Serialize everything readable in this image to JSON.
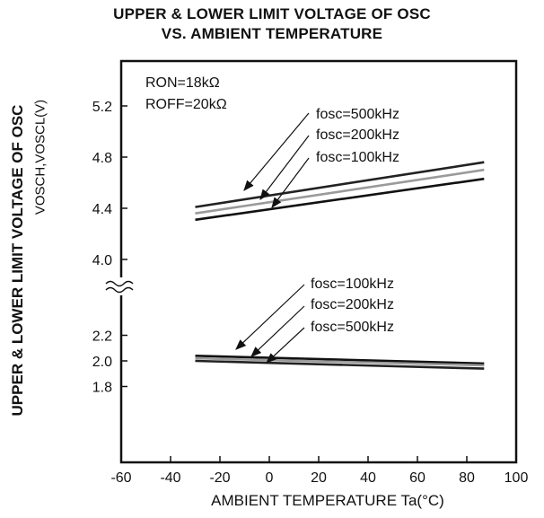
{
  "chart_data": {
    "type": "line",
    "title": "UPPER & LOWER LIMIT VOLTAGE OF OSC",
    "subtitle": "VS. AMBIENT TEMPERATURE",
    "xlabel": "AMBIENT TEMPERATURE Ta(°C)",
    "ylabel": "UPPER & LOWER LIMIT VOLTAGE OF OSC",
    "ylabel_sub": "VOSCH,VOSCL(V)",
    "xlim": [
      -60,
      100
    ],
    "x_ticks": [
      -60,
      -40,
      -20,
      0,
      20,
      40,
      60,
      80,
      100
    ],
    "y_ticks": [
      "5.2",
      "4.8",
      "4.4",
      "4.0",
      "2.2",
      "2.0",
      "1.8"
    ],
    "axis_break": "between 4.0 and 2.2",
    "conditions": [
      "RON=18kΩ",
      "ROFF=20kΩ"
    ],
    "series": [
      {
        "name": "fosc=500kHz",
        "group": "upper",
        "x": [
          -30,
          87
        ],
        "y": [
          4.41,
          4.76
        ],
        "color": "#222222"
      },
      {
        "name": "fosc=200kHz",
        "group": "upper",
        "x": [
          -30,
          87
        ],
        "y": [
          4.36,
          4.7
        ],
        "color": "#9a9a9a"
      },
      {
        "name": "fosc=100kHz",
        "group": "upper",
        "x": [
          -30,
          87
        ],
        "y": [
          4.31,
          4.63
        ],
        "color": "#111111"
      },
      {
        "name": "fosc=100kHz",
        "group": "lower",
        "x": [
          -30,
          87
        ],
        "y": [
          2.04,
          1.98
        ],
        "color": "#111111"
      },
      {
        "name": "fosc=200kHz",
        "group": "lower",
        "x": [
          -30,
          87
        ],
        "y": [
          2.02,
          1.965
        ],
        "color": "#9a9a9a"
      },
      {
        "name": "fosc=500kHz",
        "group": "lower",
        "x": [
          -30,
          87
        ],
        "y": [
          2.0,
          1.94
        ],
        "color": "#222222"
      }
    ],
    "annotations_upper": [
      "fosc=500kHz",
      "fosc=200kHz",
      "fosc=100kHz"
    ],
    "annotations_lower": [
      "fosc=100kHz",
      "fosc=200kHz",
      "fosc=500kHz"
    ]
  }
}
